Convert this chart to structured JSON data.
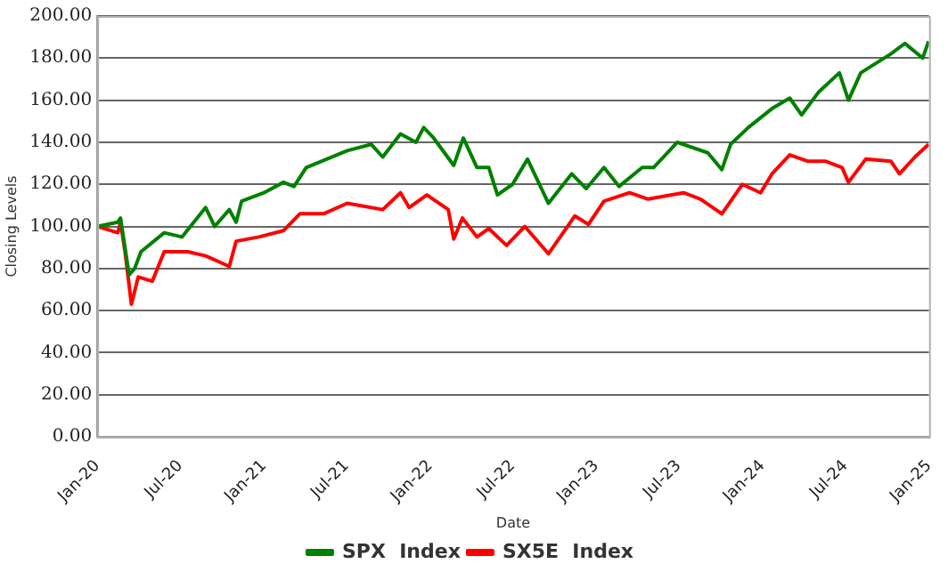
{
  "chart_data": {
    "type": "line",
    "xlabel": "Date",
    "ylabel": "Closing Levels",
    "xlim": [
      "2020-01-01",
      "2025-01-01"
    ],
    "xticks": [
      {
        "value": "2020-01-01",
        "label": "Jan-20"
      },
      {
        "value": "2020-07-01",
        "label": "Jul-20"
      },
      {
        "value": "2021-01-01",
        "label": "Jan-21"
      },
      {
        "value": "2021-07-01",
        "label": "Jul-21"
      },
      {
        "value": "2022-01-01",
        "label": "Jan-22"
      },
      {
        "value": "2022-07-01",
        "label": "Jul-22"
      },
      {
        "value": "2023-01-01",
        "label": "Jan-23"
      },
      {
        "value": "2023-07-01",
        "label": "Jul-23"
      },
      {
        "value": "2024-01-01",
        "label": "Jan-24"
      },
      {
        "value": "2024-07-01",
        "label": "Jul-24"
      },
      {
        "value": "2025-01-01",
        "label": "Jan-25"
      }
    ],
    "ylim": [
      0,
      200
    ],
    "yticks": [
      {
        "value": 0,
        "label": "0.00"
      },
      {
        "value": 20,
        "label": "20.00"
      },
      {
        "value": 40,
        "label": "40.00"
      },
      {
        "value": 60,
        "label": "60.00"
      },
      {
        "value": 80,
        "label": "80.00"
      },
      {
        "value": 100,
        "label": "100.00"
      },
      {
        "value": 120,
        "label": "120.00"
      },
      {
        "value": 140,
        "label": "140.00"
      },
      {
        "value": 160,
        "label": "160.00"
      },
      {
        "value": 180,
        "label": "180.00"
      },
      {
        "value": 200,
        "label": "200.00"
      }
    ],
    "grid": "y",
    "legend": "bottom",
    "marker": "none",
    "line_style": "solid",
    "series": [
      {
        "name": "SPX  Index",
        "color": "#008000",
        "x": [
          "2020-01-02",
          "2020-02-15",
          "2020-02-21",
          "2020-03-11",
          "2020-03-23",
          "2020-04-06",
          "2020-05-27",
          "2020-07-05",
          "2020-08-26",
          "2020-09-15",
          "2020-10-17",
          "2020-11-01",
          "2020-11-13",
          "2021-01-01",
          "2021-02-13",
          "2021-03-08",
          "2021-04-04",
          "2021-07-03",
          "2021-08-25",
          "2021-09-19",
          "2021-10-28",
          "2021-12-01",
          "2021-12-18",
          "2022-01-09",
          "2022-02-22",
          "2022-03-15",
          "2022-04-14",
          "2022-05-10",
          "2022-05-29",
          "2022-07-01",
          "2022-08-03",
          "2022-09-18",
          "2022-11-08",
          "2022-12-10",
          "2023-01-18",
          "2023-02-20",
          "2023-04-12",
          "2023-05-07",
          "2023-06-28",
          "2023-09-03",
          "2023-10-04",
          "2023-10-23",
          "2023-12-01",
          "2024-01-22",
          "2024-03-01",
          "2024-03-27",
          "2024-05-04",
          "2024-06-18",
          "2024-07-08",
          "2024-08-04",
          "2024-10-09",
          "2024-11-09",
          "2024-12-18",
          "2024-12-31"
        ],
        "values": [
          100,
          102,
          104,
          77,
          80,
          88,
          97,
          95,
          109,
          100,
          108,
          102,
          112,
          116,
          121,
          119,
          128,
          136,
          139,
          133,
          144,
          140,
          147,
          142,
          129,
          142,
          128,
          128,
          115,
          120,
          132,
          111,
          125,
          118,
          128,
          119,
          128,
          128,
          140,
          135,
          127,
          139,
          147,
          156,
          161,
          153,
          164,
          173,
          160,
          173,
          182,
          187,
          180,
          188
        ]
      },
      {
        "name": "SX5E  Index",
        "color": "#ff0000",
        "x": [
          "2020-01-02",
          "2020-02-15",
          "2020-02-21",
          "2020-03-02",
          "2020-03-16",
          "2020-03-31",
          "2020-05-01",
          "2020-05-27",
          "2020-07-18",
          "2020-08-26",
          "2020-10-17",
          "2020-11-01",
          "2020-12-21",
          "2021-02-13",
          "2021-03-21",
          "2021-05-12",
          "2021-07-03",
          "2021-09-19",
          "2021-10-28",
          "2021-11-16",
          "2021-12-25",
          "2022-02-10",
          "2022-02-22",
          "2022-03-13",
          "2022-04-14",
          "2022-05-10",
          "2022-06-18",
          "2022-07-28",
          "2022-09-18",
          "2022-11-15",
          "2022-12-15",
          "2023-01-18",
          "2023-03-15",
          "2023-04-25",
          "2023-07-12",
          "2023-08-18",
          "2023-10-04",
          "2023-11-18",
          "2023-12-28",
          "2024-01-22",
          "2024-03-01",
          "2024-04-09",
          "2024-05-18",
          "2024-06-24",
          "2024-07-08",
          "2024-08-15",
          "2024-10-09",
          "2024-10-28",
          "2024-12-01",
          "2024-12-31"
        ],
        "values": [
          100,
          97,
          102,
          88,
          63,
          76,
          74,
          88,
          88,
          86,
          81,
          93,
          95,
          98,
          106,
          106,
          111,
          108,
          116,
          109,
          115,
          108,
          94,
          104,
          95,
          99,
          91,
          100,
          87,
          105,
          101,
          112,
          116,
          113,
          116,
          113,
          106,
          120,
          116,
          125,
          134,
          131,
          131,
          128,
          121,
          132,
          131,
          125,
          133,
          139
        ]
      }
    ]
  }
}
